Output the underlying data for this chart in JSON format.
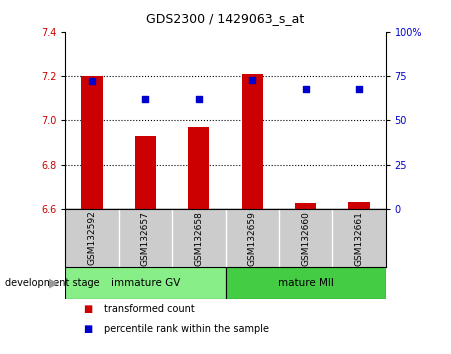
{
  "title": "GDS2300 / 1429063_s_at",
  "samples": [
    "GSM132592",
    "GSM132657",
    "GSM132658",
    "GSM132659",
    "GSM132660",
    "GSM132661"
  ],
  "transformed_count": [
    7.2,
    6.93,
    6.97,
    7.21,
    6.625,
    6.63
  ],
  "percentile_rank": [
    72,
    62,
    62,
    73,
    68,
    68
  ],
  "ylim_left": [
    6.6,
    7.4
  ],
  "ylim_right": [
    0,
    100
  ],
  "yticks_left": [
    6.6,
    6.8,
    7.0,
    7.2,
    7.4
  ],
  "yticks_right": [
    0,
    25,
    50,
    75,
    100
  ],
  "ytick_labels_right": [
    "0",
    "25",
    "50",
    "75",
    "100%"
  ],
  "bar_color": "#cc0000",
  "dot_color": "#0000cc",
  "groups": [
    {
      "label": "immature GV",
      "indices": [
        0,
        1,
        2
      ],
      "color": "#88ee88"
    },
    {
      "label": "mature MII",
      "indices": [
        3,
        4,
        5
      ],
      "color": "#44cc44"
    }
  ],
  "group_label_prefix": "development stage",
  "legend_bar_label": "transformed count",
  "legend_dot_label": "percentile rank within the sample",
  "tick_label_color_left": "#cc0000",
  "tick_label_color_right": "#0000cc",
  "bar_bottom": 6.6,
  "gray_band_color": "#cccccc",
  "divider_color": "#ffffff",
  "arrow_color": "#999999"
}
